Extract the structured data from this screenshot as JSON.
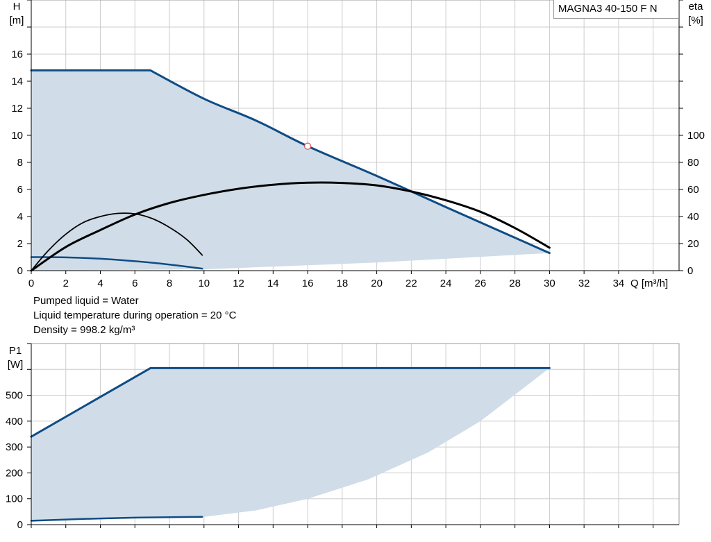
{
  "legend_label": "MAGNA3 40-150 F N",
  "liquid_info": [
    "Pumped liquid = Water",
    "Liquid temperature during operation = 20 °C",
    "Density = 998.2 kg/m³"
  ],
  "colors": {
    "area_fill": "#d0dce7",
    "curve_blue": "#0f4c85",
    "curve_black": "#000000",
    "grid": "#cccccc",
    "duty_point": "#e05050"
  },
  "chart_data": [
    {
      "type": "line",
      "xlabel": "Q [m³/h]",
      "ylabel_lines": [
        "H",
        "[m]"
      ],
      "y2label_lines": [
        "eta",
        "[%]"
      ],
      "xlim": [
        0,
        37.5
      ],
      "ylim": [
        0,
        20
      ],
      "y2lim": [
        0,
        200
      ],
      "xticks": [
        0,
        2,
        4,
        6,
        8,
        10,
        12,
        14,
        16,
        18,
        20,
        22,
        24,
        26,
        28,
        30,
        32,
        34
      ],
      "yticks": [
        0,
        2,
        4,
        6,
        8,
        10,
        12,
        14,
        16
      ],
      "y2ticks": [
        0,
        20,
        40,
        60,
        80,
        100
      ],
      "grid": true,
      "operating_area": {
        "upper": [
          [
            0,
            14.8
          ],
          [
            6.9,
            14.8
          ],
          [
            10,
            12.7
          ],
          [
            13,
            11.1
          ],
          [
            16,
            9.2
          ],
          [
            20,
            7.0
          ],
          [
            24,
            4.7
          ],
          [
            30,
            1.3
          ]
        ],
        "lower": [
          [
            30,
            1.3
          ],
          [
            20,
            0.6
          ],
          [
            10,
            0.1
          ],
          [
            0,
            0
          ]
        ]
      },
      "series": [
        {
          "style": "max-head",
          "color": "#0f4c85",
          "axis": "left",
          "points": [
            [
              0,
              14.8
            ],
            [
              6.9,
              14.8
            ],
            [
              10,
              12.7
            ],
            [
              13,
              11.1
            ],
            [
              16,
              9.2
            ],
            [
              20,
              7.0
            ],
            [
              24,
              4.7
            ],
            [
              30,
              1.3
            ]
          ]
        },
        {
          "style": "min-head",
          "color": "#0f4c85",
          "axis": "left",
          "points": [
            [
              0,
              1.0
            ],
            [
              2,
              0.98
            ],
            [
              4,
              0.88
            ],
            [
              6,
              0.7
            ],
            [
              8,
              0.45
            ],
            [
              9.9,
              0.15
            ]
          ]
        },
        {
          "style": "eta-max",
          "color": "#000000",
          "axis": "right",
          "points": [
            [
              0,
              0
            ],
            [
              2,
              17.5
            ],
            [
              4,
              30
            ],
            [
              6,
              41.5
            ],
            [
              8,
              50
            ],
            [
              10,
              56
            ],
            [
              12,
              60.5
            ],
            [
              14,
              63.5
            ],
            [
              16,
              65
            ],
            [
              18,
              64.8
            ],
            [
              20,
              63
            ],
            [
              22,
              58.5
            ],
            [
              24,
              52
            ],
            [
              26,
              43.5
            ],
            [
              28,
              31.5
            ],
            [
              30,
              17
            ]
          ]
        },
        {
          "style": "eta-min",
          "color": "#000000",
          "axis": "right",
          "points": [
            [
              0,
              0
            ],
            [
              1,
              15
            ],
            [
              2,
              27
            ],
            [
              3,
              35.5
            ],
            [
              4,
              40
            ],
            [
              5,
              42.3
            ],
            [
              6,
              42
            ],
            [
              7,
              38.5
            ],
            [
              8,
              32
            ],
            [
              9,
              23
            ],
            [
              9.9,
              11.5
            ]
          ]
        }
      ],
      "duty_point": {
        "x": 16,
        "y": 9.2
      }
    },
    {
      "type": "line",
      "ylabel_lines": [
        "P1",
        "[W]"
      ],
      "xlim": [
        0,
        37.5
      ],
      "ylim": [
        0,
        700
      ],
      "xticks": [
        0,
        2,
        4,
        6,
        8,
        10,
        12,
        14,
        16,
        18,
        20,
        22,
        24,
        26,
        28,
        30,
        32,
        34
      ],
      "yticks": [
        0,
        100,
        200,
        300,
        400,
        500
      ],
      "grid": true,
      "operating_area": {
        "upper": [
          [
            0,
            340
          ],
          [
            6.9,
            605
          ],
          [
            30,
            605
          ]
        ],
        "lower": [
          [
            30,
            605
          ],
          [
            26,
            400
          ],
          [
            23,
            280
          ],
          [
            19.5,
            175
          ],
          [
            16,
            100
          ],
          [
            13,
            55
          ],
          [
            10,
            30
          ],
          [
            0,
            15
          ]
        ]
      },
      "series": [
        {
          "style": "max-power",
          "color": "#0f4c85",
          "points": [
            [
              0,
              340
            ],
            [
              6.9,
              605
            ],
            [
              30,
              605
            ]
          ]
        },
        {
          "style": "min-power",
          "color": "#0f4c85",
          "points": [
            [
              0,
              15
            ],
            [
              3,
              22
            ],
            [
              6,
              27
            ],
            [
              9.9,
              30
            ]
          ]
        }
      ]
    }
  ]
}
